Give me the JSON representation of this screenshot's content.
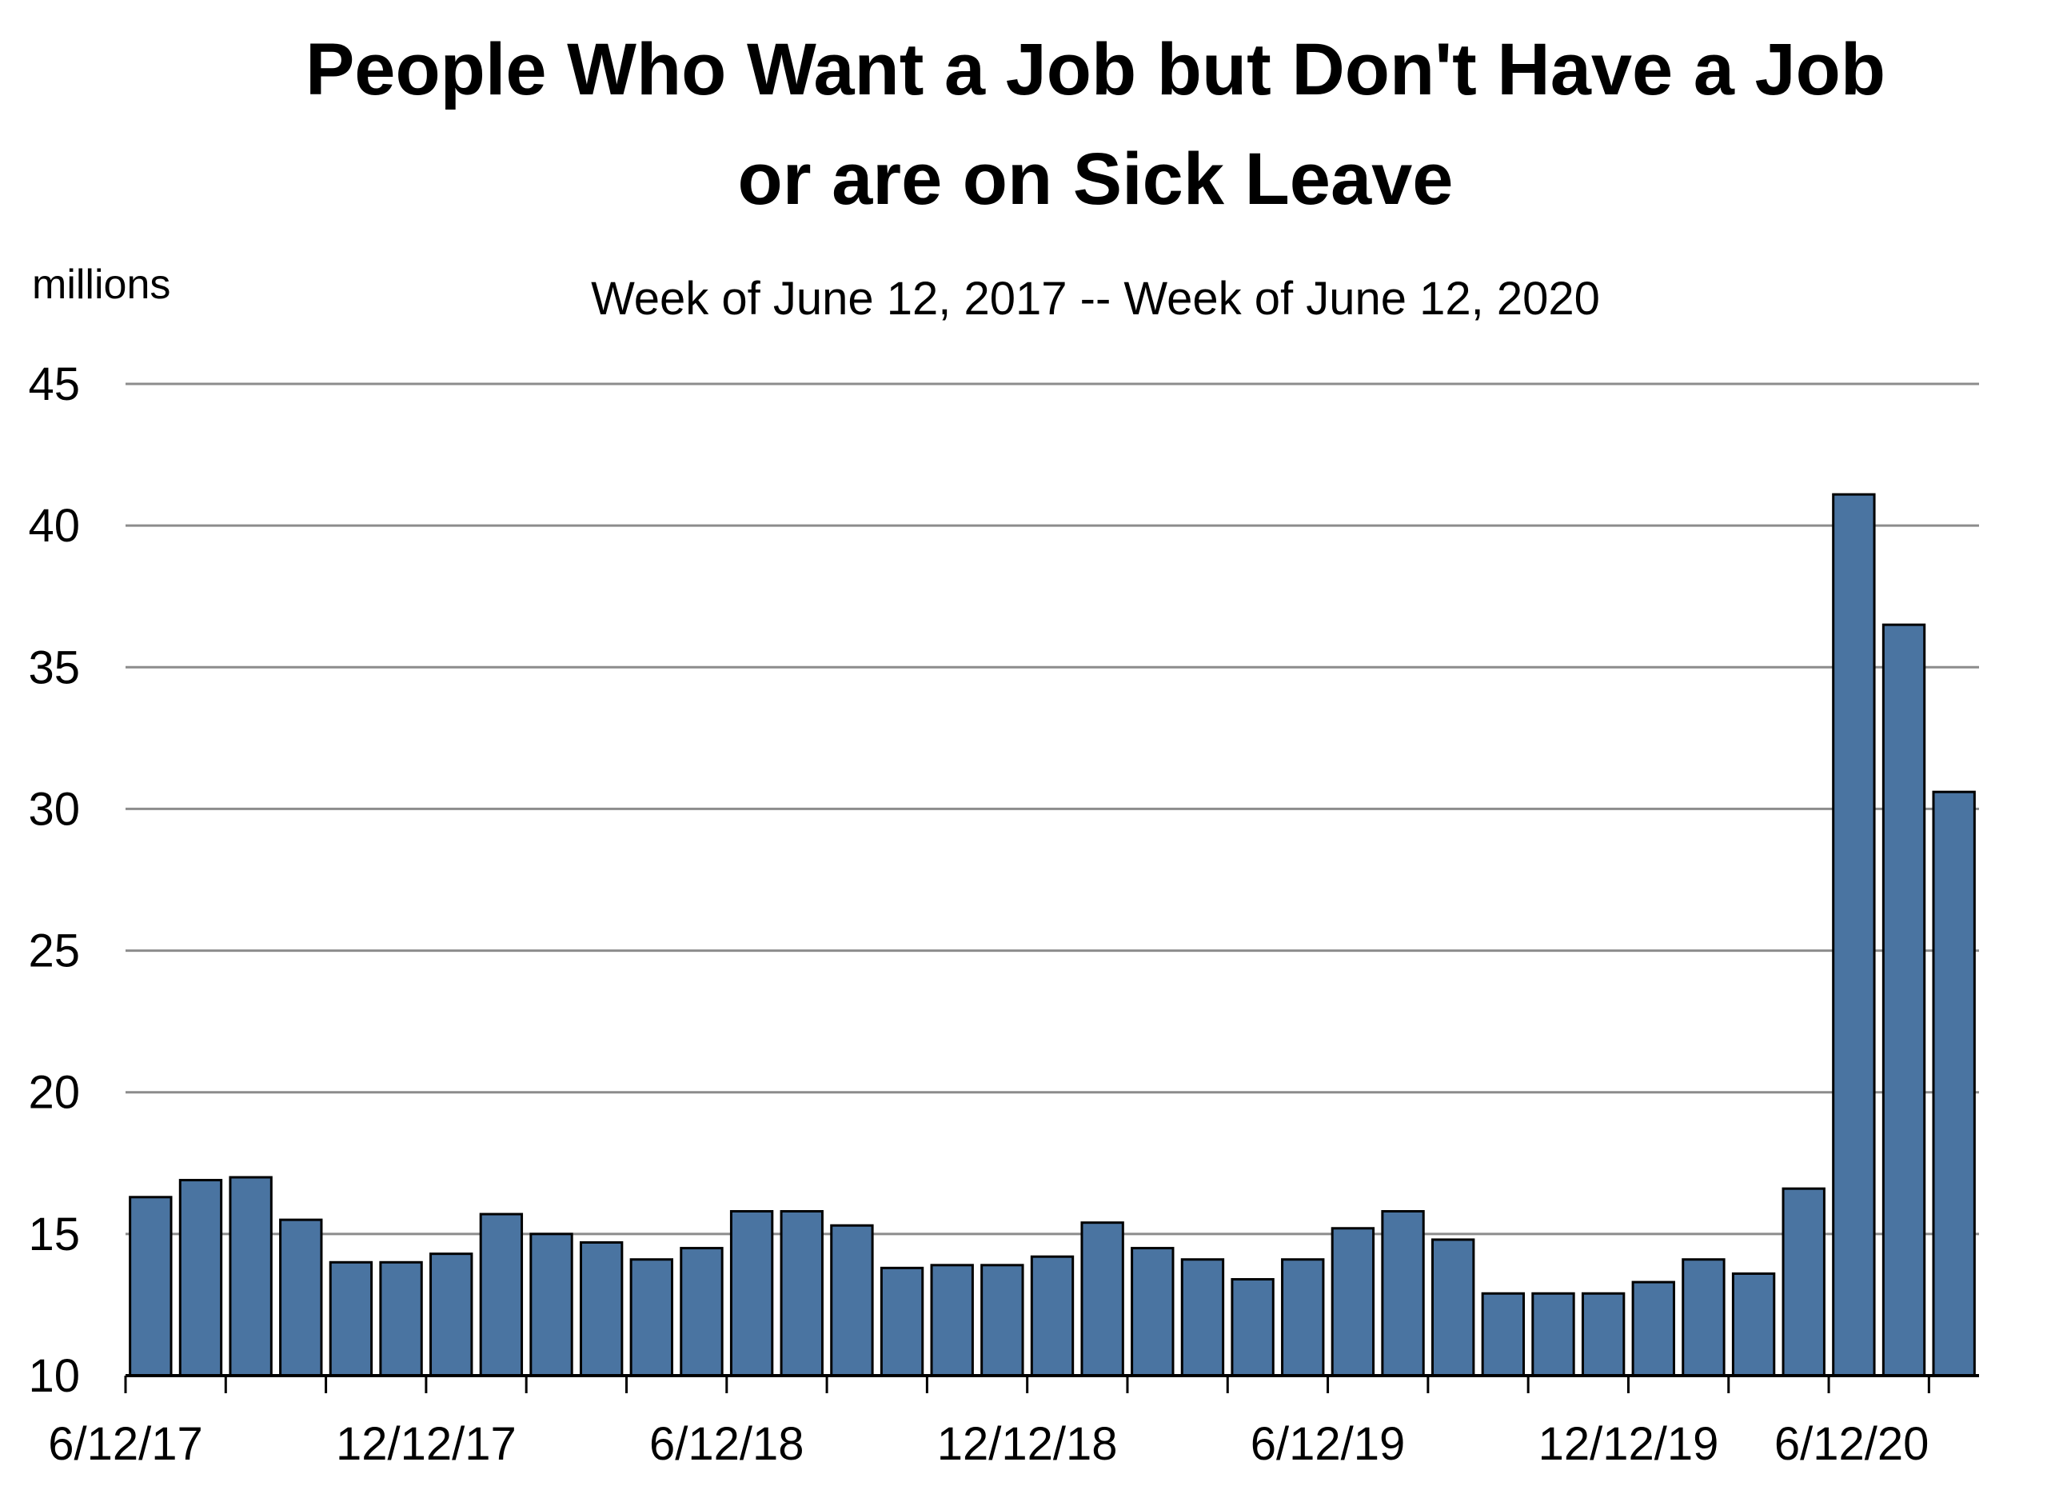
{
  "chart_data": {
    "type": "bar",
    "title_lines": [
      "People Who Want a Job but Don't Have a Job",
      "or are on Sick Leave"
    ],
    "subtitle": "Week of June 12, 2017 -- Week of June 12, 2020",
    "ylabel": "millions",
    "xlabel": "",
    "ylim": [
      10,
      45
    ],
    "yticks": [
      10,
      15,
      20,
      25,
      30,
      35,
      40,
      45
    ],
    "ytick_labels": [
      "10",
      "15",
      "20",
      "25",
      "30",
      "35",
      "40",
      "45"
    ],
    "grid": "horizontal",
    "legend": "none",
    "bar_color": "#4a74a1",
    "x_tick_labels": [
      "6/12/17",
      "12/12/17",
      "6/12/18",
      "12/12/18",
      "6/12/19",
      "12/12/19",
      "6/12/20"
    ],
    "values": [
      16.3,
      16.9,
      17.0,
      15.5,
      14.0,
      14.0,
      14.3,
      15.7,
      15.0,
      14.7,
      14.1,
      14.5,
      15.8,
      15.8,
      15.3,
      13.8,
      13.9,
      13.9,
      14.2,
      15.4,
      14.5,
      14.1,
      13.4,
      14.1,
      15.2,
      15.8,
      14.8,
      12.9,
      12.9,
      12.9,
      13.3,
      14.1,
      13.6,
      16.6,
      41.1,
      36.5,
      30.6
    ]
  }
}
